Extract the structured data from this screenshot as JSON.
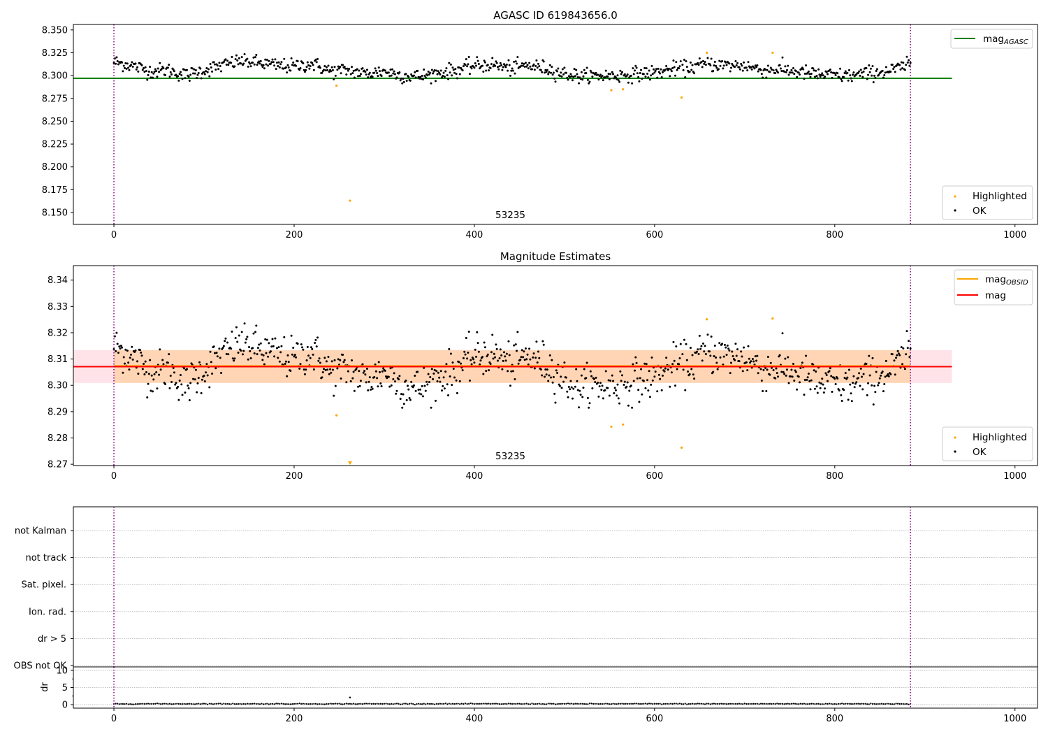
{
  "chart_data": [
    {
      "type": "scatter",
      "title": "AGASC ID 619843656.0",
      "ylim": [
        8.137,
        8.356
      ],
      "xlim": [
        -45,
        1025
      ],
      "xticks": [
        0,
        200,
        400,
        600,
        800,
        1000
      ],
      "yticks": [
        8.15,
        8.175,
        8.2,
        8.225,
        8.25,
        8.275,
        8.3,
        8.325,
        8.35
      ],
      "ytick_labels": [
        "8.150",
        "8.175",
        "8.200",
        "8.225",
        "8.250",
        "8.275",
        "8.300",
        "8.325",
        "8.350"
      ],
      "obsid_annotation": "53235",
      "obsid_annotation_x": 440,
      "vlines_x": [
        0,
        884
      ],
      "reference_lines": [
        {
          "name": "mag_AGASC",
          "label_main": "mag",
          "label_sub": "AGASC",
          "y": 8.297,
          "x": [
            -45,
            930
          ],
          "color": "#008000"
        }
      ],
      "series": [
        {
          "name": "Highlighted",
          "color": "#ffa500",
          "generated_from_points": 1000
        },
        {
          "name": "OK",
          "color": "#000000"
        }
      ],
      "highlighted_points": [
        [
          247,
          8.289
        ],
        [
          262,
          8.163
        ],
        [
          552,
          8.284
        ],
        [
          565,
          8.285
        ],
        [
          630,
          8.276
        ],
        [
          658,
          8.325
        ],
        [
          731,
          8.325
        ]
      ],
      "ok_trend": [
        [
          0,
          8.315
        ],
        [
          20,
          8.311
        ],
        [
          40,
          8.305
        ],
        [
          60,
          8.306
        ],
        [
          80,
          8.3
        ],
        [
          100,
          8.306
        ],
        [
          120,
          8.311
        ],
        [
          140,
          8.316
        ],
        [
          160,
          8.314
        ],
        [
          180,
          8.311
        ],
        [
          200,
          8.31
        ],
        [
          220,
          8.313
        ],
        [
          240,
          8.305
        ],
        [
          260,
          8.306
        ],
        [
          280,
          8.302
        ],
        [
          300,
          8.305
        ],
        [
          320,
          8.3
        ],
        [
          340,
          8.299
        ],
        [
          360,
          8.303
        ],
        [
          380,
          8.306
        ],
        [
          400,
          8.311
        ],
        [
          420,
          8.312
        ],
        [
          440,
          8.308
        ],
        [
          460,
          8.311
        ],
        [
          480,
          8.308
        ],
        [
          500,
          8.302
        ],
        [
          520,
          8.299
        ],
        [
          540,
          8.3
        ],
        [
          560,
          8.3
        ],
        [
          580,
          8.302
        ],
        [
          600,
          8.303
        ],
        [
          620,
          8.307
        ],
        [
          640,
          8.309
        ],
        [
          660,
          8.313
        ],
        [
          680,
          8.311
        ],
        [
          700,
          8.311
        ],
        [
          720,
          8.306
        ],
        [
          740,
          8.307
        ],
        [
          760,
          8.304
        ],
        [
          780,
          8.301
        ],
        [
          800,
          8.3
        ],
        [
          820,
          8.3
        ],
        [
          840,
          8.303
        ],
        [
          860,
          8.305
        ],
        [
          884,
          8.312
        ]
      ],
      "ok_scatter_sd": 0.004,
      "legend_lines_position": "upper right",
      "legend_points_position": "lower right"
    },
    {
      "type": "scatter",
      "title": "Magnitude Estimates",
      "ylim": [
        8.2695,
        8.3455
      ],
      "xlim": [
        -45,
        1025
      ],
      "xticks": [
        0,
        200,
        400,
        600,
        800,
        1000
      ],
      "yticks": [
        8.27,
        8.28,
        8.29,
        8.3,
        8.31,
        8.32,
        8.33,
        8.34
      ],
      "ytick_labels": [
        "8.27",
        "8.28",
        "8.29",
        "8.30",
        "8.31",
        "8.32",
        "8.33",
        "8.34"
      ],
      "obsid_annotation": "53235",
      "obsid_annotation_x": 440,
      "vlines_x": [
        0,
        884
      ],
      "bands": [
        {
          "y": [
            8.3009,
            8.3134
          ],
          "x": [
            -45,
            930
          ],
          "color": "#ffc0cb",
          "opacity": 0.45
        },
        {
          "y": [
            8.3009,
            8.3134
          ],
          "x": [
            0,
            884
          ],
          "color": "#ffa500",
          "opacity": 0.22
        }
      ],
      "reference_lines": [
        {
          "name": "mag_OBSID",
          "label_main": "mag",
          "label_sub": "OBSID",
          "y": 8.3074,
          "x": [
            0,
            884
          ],
          "color": "#ffa500"
        },
        {
          "name": "mag",
          "label_main": "mag",
          "label_sub": "",
          "y": 8.3071,
          "x": [
            -45,
            930
          ],
          "color": "#ff0000"
        }
      ],
      "series": [
        {
          "name": "Highlighted",
          "color": "#ffa500"
        },
        {
          "name": "OK",
          "color": "#000000"
        }
      ],
      "highlighted_points": [
        [
          247,
          8.2886
        ],
        [
          262,
          8.2705
        ],
        [
          552,
          8.2843
        ],
        [
          565,
          8.2851
        ],
        [
          630,
          8.2763
        ],
        [
          658,
          8.3251
        ],
        [
          731,
          8.3254
        ]
      ],
      "legend_lines_position": "upper right",
      "legend_points_position": "lower right"
    },
    {
      "type": "scatter",
      "categories": [
        "not Kalman",
        "not track",
        "Sat. pixel.",
        "Ion. rad.",
        "dr > 5",
        "OBS not OK"
      ],
      "xlim": [
        -45,
        1025
      ],
      "vlines_x": [
        0,
        884
      ],
      "grid": true
    },
    {
      "type": "scatter",
      "ylabel": "dr",
      "ylim": [
        -1,
        11
      ],
      "yticks": [
        0,
        5,
        10
      ],
      "ytick_labels": [
        "0",
        "5",
        "10"
      ],
      "xlim": [
        -45,
        1025
      ],
      "xticks": [
        0,
        200,
        400,
        600,
        800,
        1000
      ],
      "vlines_x": [
        0,
        884
      ],
      "dr_baseline": 0.25,
      "dr_outliers": [
        [
          262,
          2.1
        ]
      ]
    }
  ]
}
